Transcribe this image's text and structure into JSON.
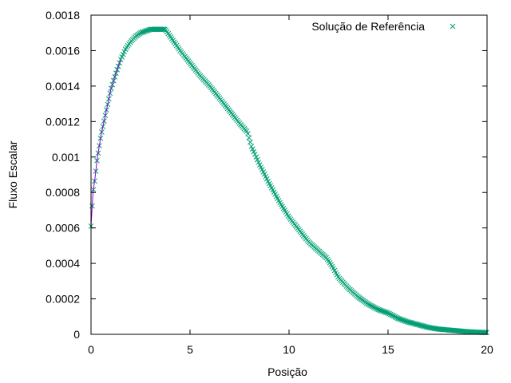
{
  "chart_data": {
    "type": "scatter",
    "title": "",
    "xlabel": "Posição",
    "ylabel": "Fluxo Escalar",
    "xlim": [
      0,
      20
    ],
    "ylim": [
      0,
      0.0018
    ],
    "x_ticks": [
      0,
      5,
      10,
      15,
      20
    ],
    "x_tick_labels": [
      "0",
      "5",
      "10",
      "15",
      "20"
    ],
    "y_ticks": [
      0,
      0.0002,
      0.0004,
      0.0006,
      0.0008,
      0.001,
      0.0012,
      0.0014,
      0.0016,
      0.0018
    ],
    "y_tick_labels": [
      "0",
      "0.0002",
      "0.0004",
      "0.0006",
      "0.0008",
      "0.001",
      "0.0012",
      "0.0014",
      "0.0016",
      "0.0018"
    ],
    "grid": false,
    "legend_position": "top-right",
    "series": [
      {
        "name": "Solução de Referência",
        "marker": "x",
        "color": "#009e73",
        "x": [
          0,
          0.1,
          0.2,
          0.3,
          0.5,
          0.75,
          1.0,
          1.25,
          1.5,
          1.75,
          2.0,
          2.25,
          2.5,
          2.75,
          3.0,
          3.25,
          3.5,
          3.75,
          4.0,
          4.25,
          4.5,
          5.0,
          5.5,
          6.0,
          6.5,
          7.0,
          7.5,
          7.9,
          8.1,
          8.5,
          9.0,
          9.5,
          10.0,
          10.5,
          11.0,
          11.5,
          11.9,
          12.2,
          12.5,
          13.0,
          13.5,
          14.0,
          14.5,
          15.0,
          15.5,
          16.0,
          16.5,
          17.0,
          17.5,
          18.0,
          18.5,
          19.0,
          19.5,
          20.0
        ],
        "y": [
          0.00061,
          0.0008,
          0.00088,
          0.00098,
          0.00112,
          0.00125,
          0.00138,
          0.00147,
          0.00155,
          0.00161,
          0.00165,
          0.00168,
          0.0017,
          0.00171,
          0.00172,
          0.00172,
          0.00172,
          0.00172,
          0.00168,
          0.00164,
          0.0016,
          0.00153,
          0.00146,
          0.0014,
          0.00133,
          0.00126,
          0.00119,
          0.00114,
          0.00106,
          0.00096,
          0.00085,
          0.00075,
          0.00066,
          0.00059,
          0.00052,
          0.00047,
          0.00043,
          0.00038,
          0.00032,
          0.00026,
          0.00021,
          0.00017,
          0.00014,
          0.00012,
          9e-05,
          7e-05,
          5.5e-05,
          4e-05,
          3e-05,
          2.5e-05,
          2e-05,
          1.5e-05,
          1.2e-05,
          1e-05
        ]
      }
    ],
    "overlay_line": {
      "color": "#9400d3",
      "x": [
        0,
        0.1,
        0.2,
        0.3,
        0.5,
        0.75,
        1.0,
        1.25,
        1.5
      ],
      "y": [
        0.00061,
        0.0008,
        0.00088,
        0.00098,
        0.00112,
        0.00125,
        0.00138,
        0.00147,
        0.00155
      ]
    }
  }
}
